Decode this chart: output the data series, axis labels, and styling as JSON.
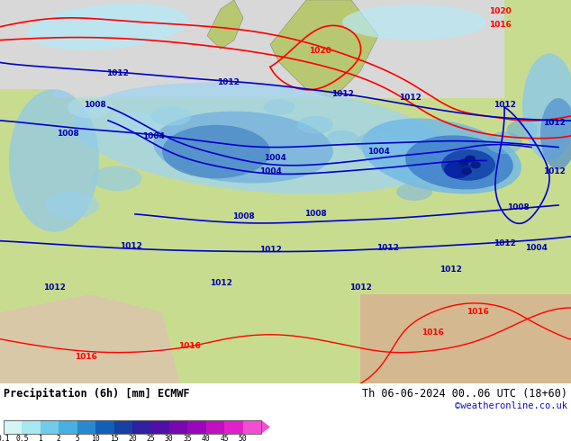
{
  "title_left": "Precipitation (6h) [mm] ECMWF",
  "title_right": "Th 06-06-2024 00..06 UTC (18+60)",
  "subtitle_right": "©weatheronline.co.uk",
  "colorbar_labels": [
    "0.1",
    "0.5",
    "1",
    "2",
    "5",
    "10",
    "15",
    "20",
    "25",
    "30",
    "35",
    "40",
    "45",
    "50"
  ],
  "colorbar_colors": [
    "#d4f5f5",
    "#a8e8f0",
    "#70cce8",
    "#48b0e0",
    "#2888d0",
    "#1060b8",
    "#1840a0",
    "#3020a0",
    "#5010a8",
    "#7808b0",
    "#9808b8",
    "#c010c0",
    "#e020c8",
    "#f050d0"
  ],
  "fig_bg_color": "#ffffff",
  "map_bg_top": "#e8e8e8",
  "land_color": "#c8dc90",
  "sea_color": "#d0d0d0",
  "precip_light": "#a0d8f0",
  "precip_med": "#5090d0",
  "precip_dark": "#1040a0",
  "fig_width": 6.34,
  "fig_height": 4.9,
  "dpi": 100
}
